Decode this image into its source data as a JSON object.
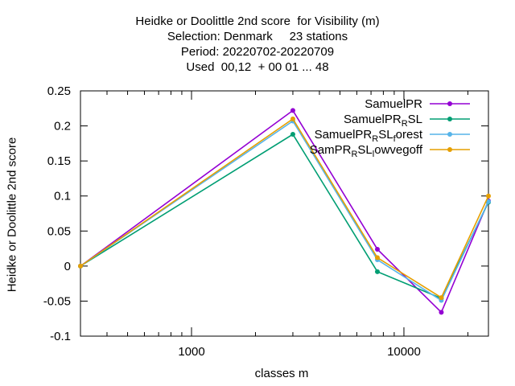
{
  "chart_data": {
    "type": "line",
    "title_lines": [
      "Heidke or Doolittle 2nd score  for Visibility (m)",
      "Selection: Denmark     23 stations",
      "Period: 20220702-20220709",
      "Used  00,12  + 00 01 ... 48"
    ],
    "xlabel": "classes m",
    "ylabel": "Heidke or Doolittle 2nd score",
    "x_scale": "log",
    "xlim": [
      300,
      25000
    ],
    "ylim": [
      -0.1,
      0.25
    ],
    "x_ticks": [
      {
        "value": 1000,
        "label": "1000"
      },
      {
        "value": 10000,
        "label": "10000"
      }
    ],
    "y_ticks": [
      {
        "value": -0.1,
        "label": "-0.1"
      },
      {
        "value": -0.05,
        "label": "-0.05"
      },
      {
        "value": 0,
        "label": "0"
      },
      {
        "value": 0.05,
        "label": "0.05"
      },
      {
        "value": 0.1,
        "label": "0.1"
      },
      {
        "value": 0.15,
        "label": "0.15"
      },
      {
        "value": 0.2,
        "label": "0.2"
      },
      {
        "value": 0.25,
        "label": "0.25"
      }
    ],
    "grid": false,
    "legend_position": "top-right",
    "x": [
      300,
      3000,
      7500,
      15000,
      25000
    ],
    "series": [
      {
        "name": "SamuelPR",
        "color": "#9400d3",
        "values": [
          0.0,
          0.222,
          0.024,
          -0.066,
          0.093
        ]
      },
      {
        "name": "SamuelPR_R SL",
        "label_main": "SamuelPR",
        "label_sub": "R",
        "label_tail": "SL",
        "color": "#009e73",
        "values": [
          0.0,
          0.188,
          -0.008,
          -0.046,
          0.091
        ]
      },
      {
        "name": "SamuelPR_R SL_forest",
        "label_main": "SamuelPR",
        "label_sub": "R",
        "label_tail": "SL",
        "label_sub2": "f",
        "label_tail2": "orest",
        "color": "#56b4e9",
        "values": [
          0.0,
          0.207,
          0.009,
          -0.049,
          0.092
        ]
      },
      {
        "name": "SamPR_R SL_lowvegoff",
        "label_main": "SamPR",
        "label_sub": "R",
        "label_tail": "SL",
        "label_sub2": "l",
        "label_tail2": "owvegoff",
        "color": "#e69f00",
        "values": [
          0.0,
          0.21,
          0.012,
          -0.045,
          0.1
        ]
      }
    ]
  }
}
